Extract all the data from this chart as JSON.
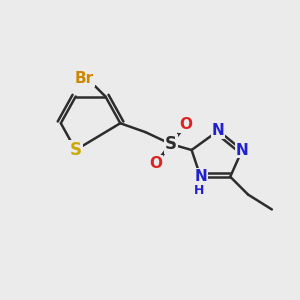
{
  "bg_color": "#ebebeb",
  "bond_color": "#2d2d2d",
  "line_width": 1.8,
  "atom_colors": {
    "Br": "#cc8800",
    "S_thiophene": "#ccaa00",
    "S_sulfonyl": "#2d2d2d",
    "O": "#dd2222",
    "N": "#2222cc",
    "H": "#2222cc",
    "C": "#2d2d2d"
  },
  "font_size_atoms": 11,
  "font_size_small": 9
}
